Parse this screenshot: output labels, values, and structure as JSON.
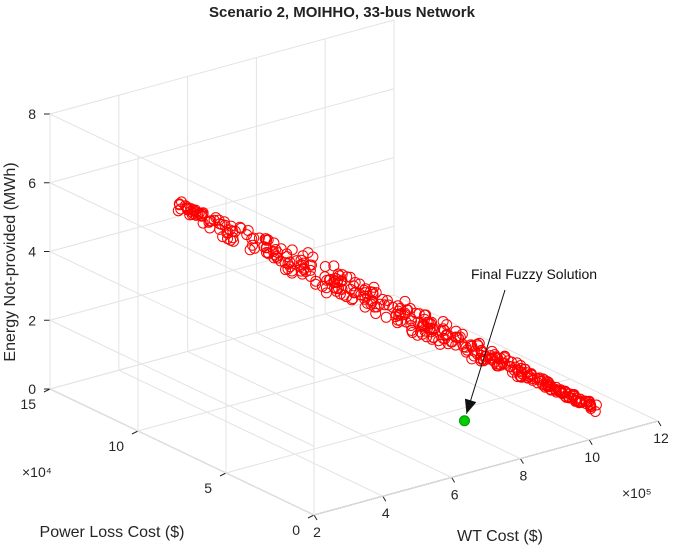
{
  "chart_data": {
    "type": "scatter",
    "title": "Scenario 2, MOIHHO, 33-bus Network",
    "xlabel": "WT Cost ($)",
    "ylabel": "Power Loss Cost ($)",
    "zlabel": "Energy Not-provided (MWh)",
    "x_exponent": "×10⁵",
    "y_exponent": "×10⁴",
    "xlim": [
      2,
      12
    ],
    "ylim": [
      0,
      15
    ],
    "zlim": [
      0,
      8
    ],
    "x_ticks": [
      "2",
      "4",
      "6",
      "8",
      "10",
      "12"
    ],
    "y_ticks": [
      "0",
      "5",
      "10",
      "15"
    ],
    "z_ticks": [
      "0",
      "2",
      "4",
      "6",
      "8"
    ],
    "grid": true,
    "marker_color": "#ff0000",
    "highlight_color": "#00cc00",
    "annotation": {
      "text": "Final Fuzzy Solution",
      "point": [
        7.5,
        2.2,
        0.7
      ]
    },
    "series": [
      {
        "marker": "open-circle",
        "t_range": [
          0,
          1
        ],
        "x_range": [
          2.3,
          11.2
        ],
        "y_range": [
          8.6,
          2.0
        ],
        "z_range": [
          6.9,
          0.1
        ],
        "n_points": 400
      }
    ]
  }
}
